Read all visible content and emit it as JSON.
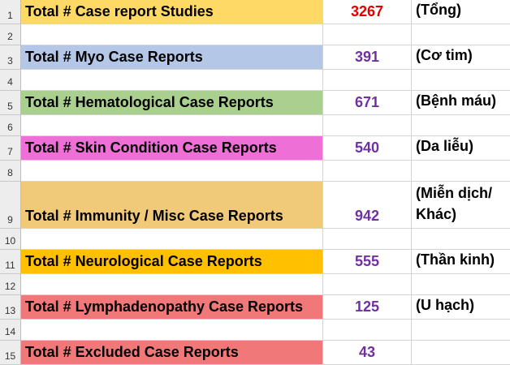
{
  "sheet": {
    "rows": [
      {
        "num": "1",
        "label": "Total # Case report Studies",
        "value": "3267",
        "note": "(Tổng)",
        "fill": "#ffd966",
        "value_color": "#e00000"
      },
      {
        "num": "2",
        "label": "",
        "value": "",
        "note": "",
        "fill": "",
        "value_color": ""
      },
      {
        "num": "3",
        "label": "Total # Myo Case Reports",
        "value": "391",
        "note": "(Cơ tim)",
        "fill": "#b4c7e7",
        "value_color": "#7030a0"
      },
      {
        "num": "4",
        "label": "",
        "value": "",
        "note": "",
        "fill": "",
        "value_color": ""
      },
      {
        "num": "5",
        "label": "Total # Hematological Case Reports",
        "value": "671",
        "note": "(Bệnh máu)",
        "fill": "#a9d08e",
        "value_color": "#7030a0"
      },
      {
        "num": "6",
        "label": "",
        "value": "",
        "note": "",
        "fill": "",
        "value_color": ""
      },
      {
        "num": "7",
        "label": "Total # Skin Condition Case Reports",
        "value": "540",
        "note": "(Da liễu)",
        "fill": "#ee6fd6",
        "value_color": "#7030a0"
      },
      {
        "num": "8",
        "label": "",
        "value": "",
        "note": "",
        "fill": "",
        "value_color": ""
      },
      {
        "num": "9",
        "label": "Total # Immunity / Misc Case Reports",
        "value": "942",
        "note": "(Miễn dịch/ Khác)",
        "fill": "#f0ca78",
        "value_color": "#7030a0"
      },
      {
        "num": "10",
        "label": "",
        "value": "",
        "note": "",
        "fill": "",
        "value_color": ""
      },
      {
        "num": "11",
        "label": "Total # Neurological Case Reports",
        "value": "555",
        "note": "(Thần kinh)",
        "fill": "#ffc000",
        "value_color": "#7030a0"
      },
      {
        "num": "12",
        "label": "",
        "value": "",
        "note": "",
        "fill": "",
        "value_color": ""
      },
      {
        "num": "13",
        "label": "Total # Lymphadenopathy Case Reports",
        "value": "125",
        "note": "(U hạch)",
        "fill": "#f07878",
        "value_color": "#7030a0"
      },
      {
        "num": "14",
        "label": "",
        "value": "",
        "note": "",
        "fill": "",
        "value_color": ""
      },
      {
        "num": "15",
        "label": "Total # Excluded Case Reports",
        "value": "43",
        "note": "",
        "fill": "#f07878",
        "value_color": "#7030a0"
      }
    ]
  }
}
